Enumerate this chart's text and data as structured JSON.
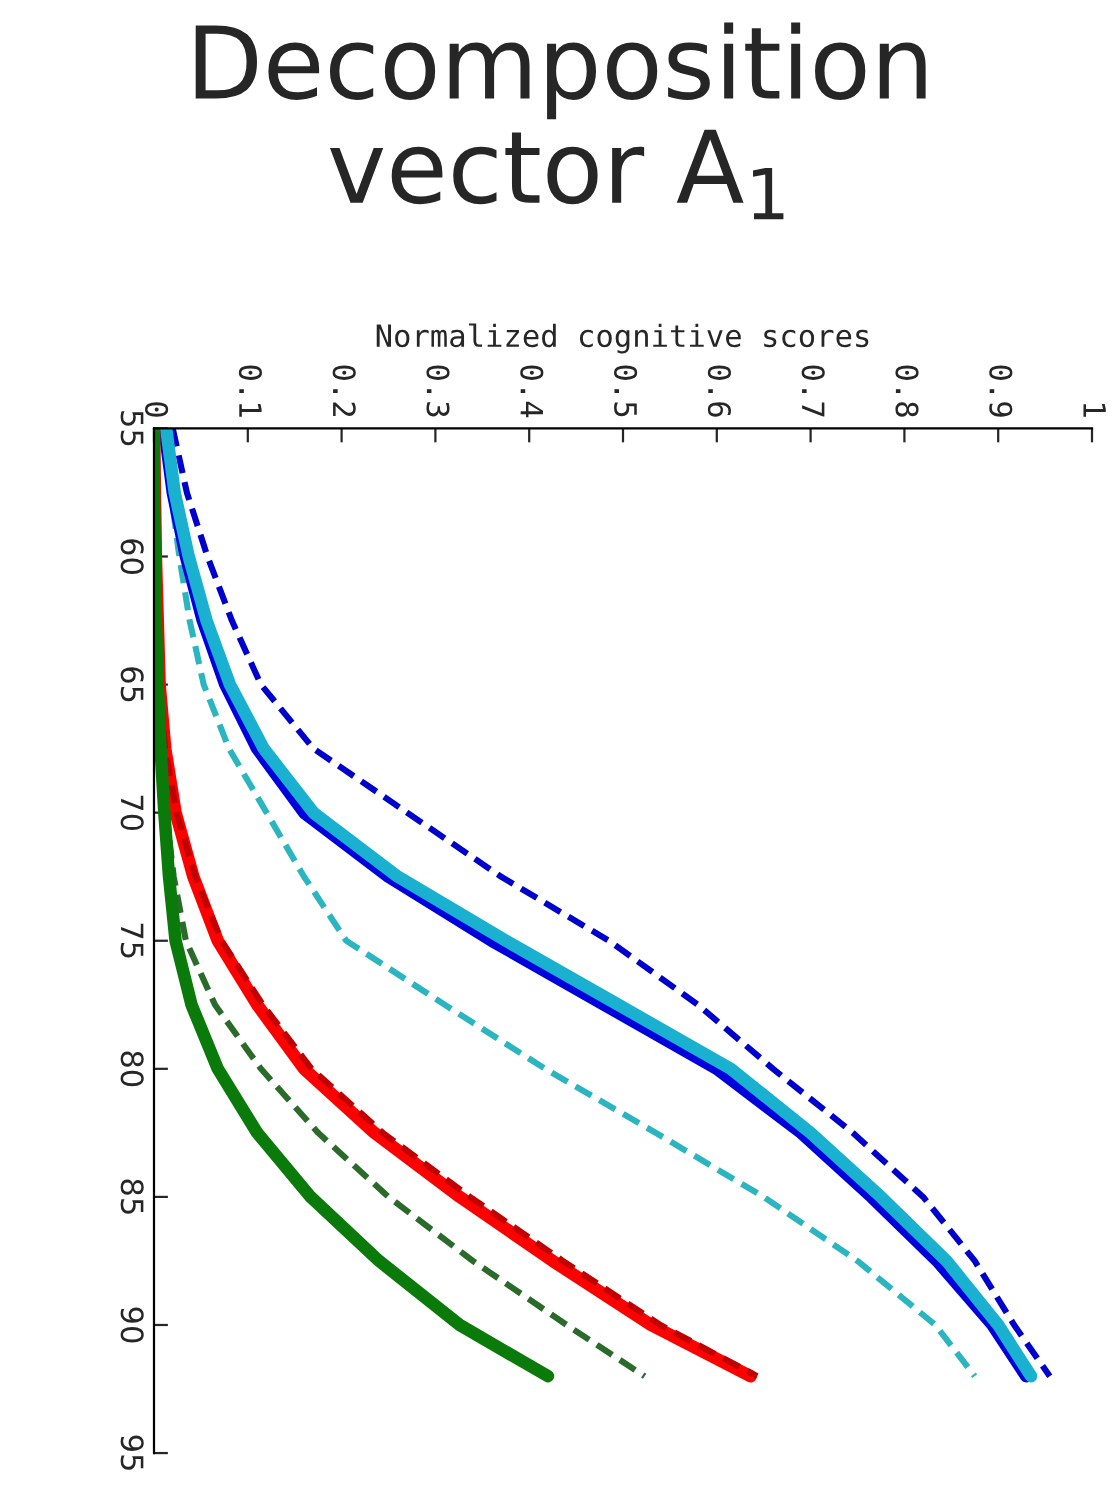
{
  "chart_data": {
    "type": "line",
    "title": "Decomposition vector A$_{1}$",
    "xlabel": "Normalized cognitive scores",
    "orientation": "horizontal",
    "x": [
      55,
      57.5,
      60,
      62.5,
      65,
      67.5,
      70,
      72.5,
      75,
      77.5,
      80,
      82.5,
      85,
      87.5,
      90,
      92
    ],
    "series": [
      {
        "color": "#0000cc",
        "line_style": "dashed",
        "values": [
          0.02,
          0.035,
          0.057,
          0.083,
          0.114,
          0.17,
          0.27,
          0.37,
          0.485,
          0.58,
          0.66,
          0.745,
          0.82,
          0.875,
          0.917,
          0.955
        ]
      },
      {
        "color": "#2bb5c0",
        "line_style": "dashed",
        "values": [
          0.012,
          0.018,
          0.027,
          0.038,
          0.053,
          0.08,
          0.12,
          0.16,
          0.205,
          0.31,
          0.417,
          0.535,
          0.65,
          0.75,
          0.833,
          0.875
        ]
      },
      {
        "color": "#0000dd",
        "line_style": "solid",
        "values": [
          0.011,
          0.02,
          0.034,
          0.052,
          0.076,
          0.11,
          0.16,
          0.25,
          0.36,
          0.48,
          0.6,
          0.69,
          0.765,
          0.835,
          0.894,
          0.93
        ]
      },
      {
        "color": "#1ab0d0",
        "line_style": "solid",
        "values": [
          0.013,
          0.022,
          0.037,
          0.056,
          0.081,
          0.117,
          0.17,
          0.26,
          0.375,
          0.495,
          0.615,
          0.7,
          0.775,
          0.845,
          0.9,
          0.935
        ]
      },
      {
        "color": "#ff0000",
        "line_style": "solid",
        "values": [
          0,
          0.001,
          0.002,
          0.004,
          0.006,
          0.012,
          0.023,
          0.042,
          0.068,
          0.11,
          0.16,
          0.235,
          0.326,
          0.425,
          0.53,
          0.636
        ]
      },
      {
        "color": "#c00000",
        "line_style": "dashed",
        "values": [
          0,
          0.001,
          0.002,
          0.004,
          0.006,
          0.012,
          0.024,
          0.044,
          0.072,
          0.116,
          0.168,
          0.244,
          0.337,
          0.436,
          0.54,
          0.643
        ]
      },
      {
        "color": "#2a6a2a",
        "line_style": "dashed",
        "values": [
          0,
          0,
          0.001,
          0.002,
          0.004,
          0.008,
          0.013,
          0.021,
          0.034,
          0.065,
          0.114,
          0.175,
          0.25,
          0.34,
          0.44,
          0.523
        ]
      },
      {
        "color": "#0a7a0a",
        "line_style": "solid",
        "values": [
          0,
          0,
          0.001,
          0.002,
          0.004,
          0.007,
          0.011,
          0.016,
          0.023,
          0.04,
          0.068,
          0.11,
          0.167,
          0.24,
          0.326,
          0.42
        ]
      }
    ],
    "xlim": [
      0,
      1
    ],
    "xticks": [
      0,
      0.1,
      0.2,
      0.3,
      0.4,
      0.5,
      0.6,
      0.7,
      0.8,
      0.9,
      1
    ],
    "ylim": [
      95,
      55
    ],
    "yticks": [
      55,
      60,
      65,
      70,
      75,
      80,
      85,
      90,
      95
    ],
    "grid": false,
    "legend": false
  }
}
